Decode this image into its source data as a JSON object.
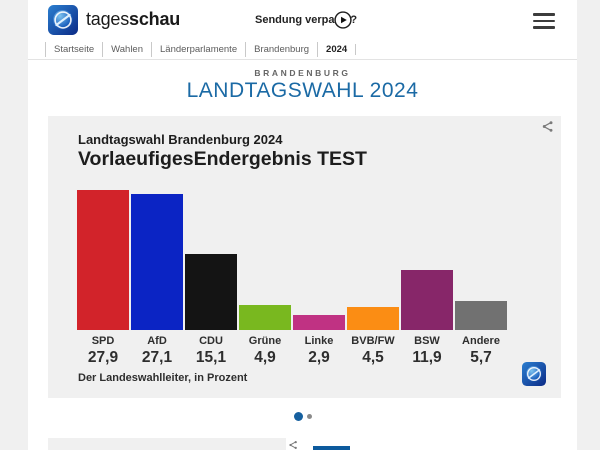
{
  "header": {
    "brand": {
      "regular": "tages",
      "bold": "schau"
    },
    "sendung_verpasst": "Sendung verpasst?"
  },
  "breadcrumb": {
    "items": [
      "Startseite",
      "Wahlen",
      "Länderparlamente",
      "Brandenburg",
      "2024"
    ]
  },
  "page_heading": {
    "kicker": "BRANDENBURG",
    "title": "LANDTAGSWAHL 2024"
  },
  "chart_card": {
    "subtitle": "Landtagswahl Brandenburg 2024",
    "title": "VorlaeufigesEndergebnis TEST",
    "source": "Der Landeswahlleiter, in Prozent"
  },
  "chart_data": {
    "type": "bar",
    "title": "VorlaeufigesEndergebnis TEST",
    "subtitle": "Landtagswahl Brandenburg 2024",
    "categories": [
      "SPD",
      "AfD",
      "CDU",
      "Grüne",
      "Linke",
      "BVB/FW",
      "BSW",
      "Andere"
    ],
    "values": [
      27.9,
      27.1,
      15.1,
      4.9,
      2.9,
      4.5,
      11.9,
      5.7
    ],
    "value_labels": [
      "27,9",
      "27,1",
      "15,1",
      "4,9",
      "2,9",
      "4,5",
      "11,9",
      "5,7"
    ],
    "bar_colors": [
      "#d2232a",
      "#0b24c4",
      "#141414",
      "#79b81f",
      "#c03283",
      "#fb8d14",
      "#872669",
      "#717171"
    ],
    "unit": "Prozent",
    "source": "Der Landeswahlleiter, in Prozent",
    "ylim": [
      0,
      30
    ],
    "grid": false,
    "legend": false
  },
  "carousel": {
    "dot_count": 2,
    "active_index": 0
  },
  "colors": {
    "accent_blue": "#1b6aa5",
    "dot_active": "#16609f",
    "card_background": "#f0f0f0",
    "page_background": "#f0f0f0",
    "next_widget_bar_blue": "#0d5a9d"
  }
}
